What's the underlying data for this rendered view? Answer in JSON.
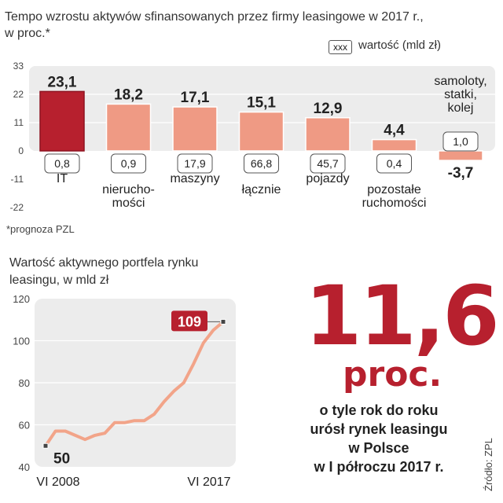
{
  "chart_data": [
    {
      "type": "bar",
      "title": "Tempo wzrostu aktywów sfinansowanych przez firmy leasingowe w 2017 r.,",
      "subtitle": "w proc.*",
      "legend": {
        "box_text": "xxx",
        "label": "wartość (mld zł)"
      },
      "ylim": [
        -22,
        33
      ],
      "yticks": [
        33,
        22,
        11,
        0,
        -11,
        -22
      ],
      "categories": [
        {
          "name_lines": [
            "IT"
          ],
          "growth": 23.1,
          "growth_label": "23,1",
          "value_label": "0,8",
          "highlight": true
        },
        {
          "name_lines": [
            "nierucho-",
            "mości"
          ],
          "growth": 18.2,
          "growth_label": "18,2",
          "value_label": "0,9",
          "highlight": false
        },
        {
          "name_lines": [
            "maszyny"
          ],
          "growth": 17.1,
          "growth_label": "17,1",
          "value_label": "17,9",
          "highlight": false
        },
        {
          "name_lines": [
            "łącznie"
          ],
          "growth": 15.1,
          "growth_label": "15,1",
          "value_label": "66,8",
          "highlight": false
        },
        {
          "name_lines": [
            "pojazdy"
          ],
          "growth": 12.9,
          "growth_label": "12,9",
          "value_label": "45,7",
          "highlight": false
        },
        {
          "name_lines": [
            "pozostałe",
            "ruchomości"
          ],
          "growth": 4.4,
          "growth_label": "4,4",
          "value_label": "0,4",
          "highlight": false
        },
        {
          "name_lines": [
            "samoloty,",
            "statki,",
            "kolej"
          ],
          "growth": -3.7,
          "growth_label": "-3,7",
          "value_label": "1,0",
          "highlight": false
        }
      ],
      "footnote": "*prognoza PZL"
    },
    {
      "type": "line",
      "title_lines": [
        "Wartość aktywnego portfela rynku",
        "leasingu, w mld zł"
      ],
      "ylim": [
        40,
        120
      ],
      "yticks": [
        40,
        60,
        80,
        100,
        120
      ],
      "x_labels": [
        "VI 2008",
        "VI 2017"
      ],
      "values": [
        50,
        57,
        57,
        55,
        53,
        55,
        56,
        61,
        61,
        62,
        62,
        65,
        71,
        76,
        80,
        89,
        99,
        105,
        109
      ],
      "start_label": "50",
      "end_label": "109"
    }
  ],
  "highlight": {
    "number": "11,6",
    "unit": "proc.",
    "description_lines": [
      "o tyle rok do roku",
      "urósł rynek leasingu",
      "w Polsce",
      "w I półroczu 2017 r."
    ]
  },
  "source": "Źródło: ZPL",
  "colors": {
    "accent": "#b7202e",
    "bar": "#ef9a84",
    "line": "#f2a489",
    "panel": "#ececec"
  }
}
